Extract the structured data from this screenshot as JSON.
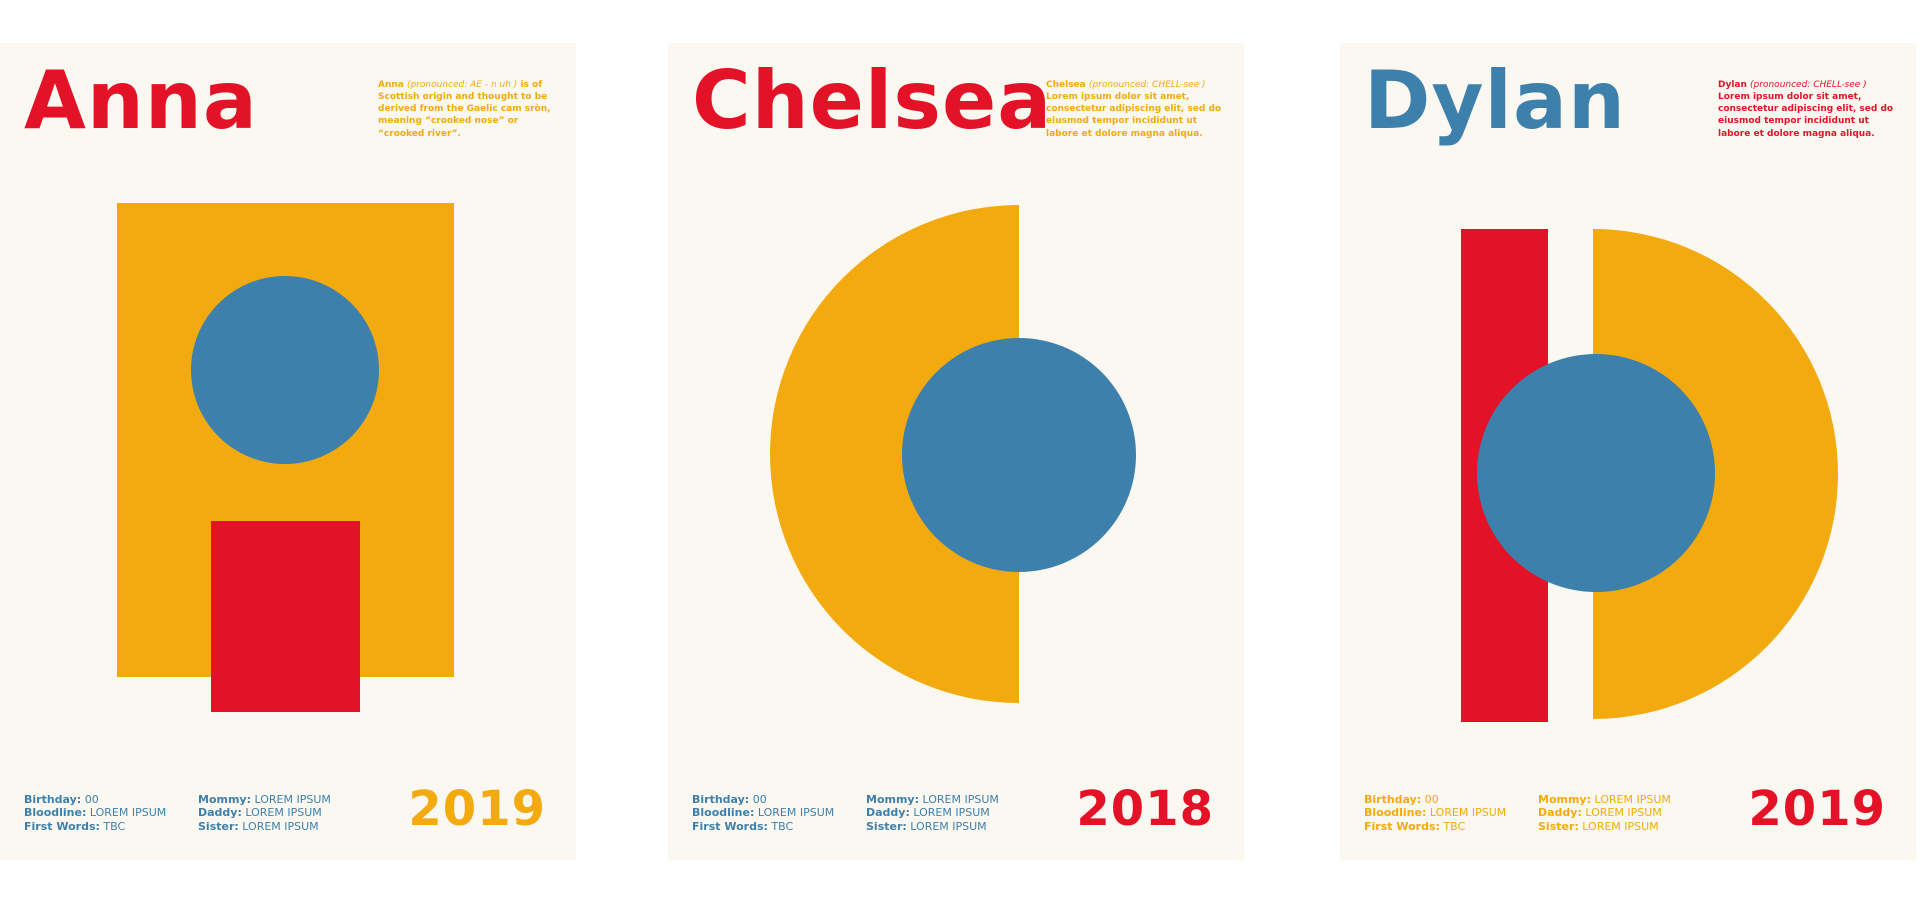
{
  "colors": {
    "red": "#e31226",
    "blue": "#3d80ab",
    "gold": "#f3aa0f",
    "paper": "#fbf8f2"
  },
  "posters": [
    {
      "name": "Anna",
      "pronounced_label": "(pronounced: AE - n uh )",
      "blurb": "is of Scottish origin and thought to be derived from the Gaelic cam sròn, meaning “crooked nose” or “crooked river”.",
      "birthday_label": "Birthday:",
      "birthday_value": "00",
      "bloodline_label": "Bloodline:",
      "bloodline_value": "LOREM IPSUM",
      "first_words_label": "First Words:",
      "first_words_value": "TBC",
      "mommy_label": "Mommy:",
      "mommy_value": "LOREM IPSUM",
      "daddy_label": "Daddy:",
      "daddy_value": "LOREM IPSUM",
      "sister_label": "Sister:",
      "sister_value": "LOREM IPSUM",
      "year": "2019"
    },
    {
      "name": "Chelsea",
      "pronounced_label": "(pronounced: CHELL-see )",
      "blurb": "Lorem ipsum dolor sit amet, consectetur adipiscing elit, sed do eiusmod tempor incididunt ut labore et dolore magna aliqua.",
      "birthday_label": "Birthday:",
      "birthday_value": "00",
      "bloodline_label": "Bloodline:",
      "bloodline_value": "LOREM IPSUM",
      "first_words_label": "First Words:",
      "first_words_value": "TBC",
      "mommy_label": "Mommy:",
      "mommy_value": "LOREM IPSUM",
      "daddy_label": "Daddy:",
      "daddy_value": "LOREM IPSUM",
      "sister_label": "Sister:",
      "sister_value": "LOREM IPSUM",
      "year": "2018"
    },
    {
      "name": "Dylan",
      "pronounced_label": "(pronounced: CHELL-see )",
      "blurb": "Lorem ipsum dolor sit amet, consectetur adipiscing elit, sed do eiusmod tempor incididunt ut labore et dolore magna aliqua.",
      "birthday_label": "Birthday:",
      "birthday_value": "00",
      "bloodline_label": "Bloodline:",
      "bloodline_value": "LOREM IPSUM",
      "first_words_label": "First Words:",
      "first_words_value": "TBC",
      "mommy_label": "Mommy:",
      "mommy_value": "LOREM IPSUM",
      "daddy_label": "Daddy:",
      "daddy_value": "LOREM IPSUM",
      "sister_label": "Sister:",
      "sister_value": "LOREM IPSUM",
      "year": "2019"
    }
  ]
}
